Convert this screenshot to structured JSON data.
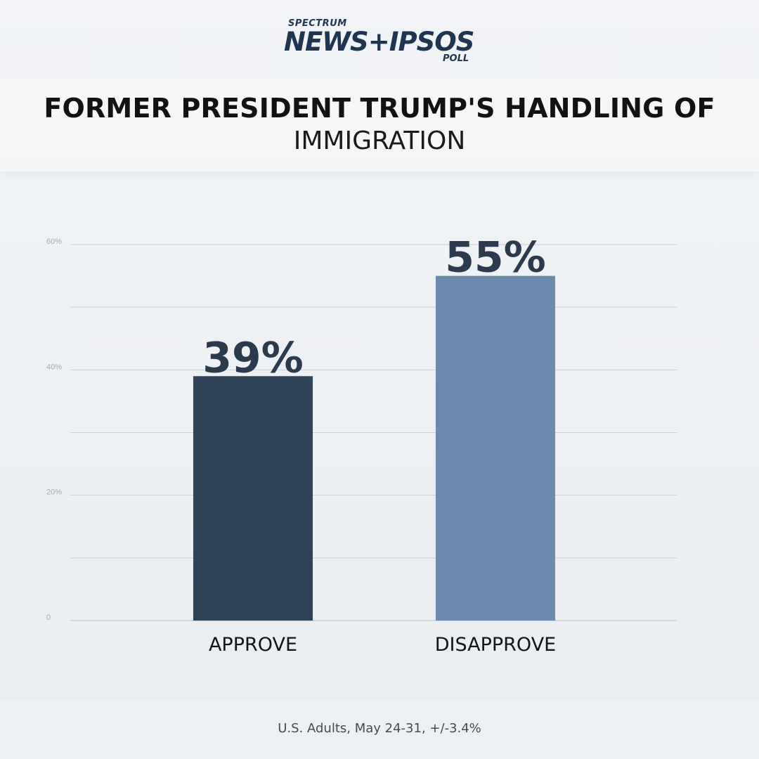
{
  "logo": {
    "line1": "SPECTRUM",
    "line2": "NEWS+IPSOS",
    "line3": "POLL"
  },
  "title": {
    "line1": "FORMER PRESIDENT TRUMP'S HANDLING OF",
    "line2": "IMMIGRATION"
  },
  "footer": {
    "note": "U.S. Adults, May 24-31, +/-3.4%"
  },
  "colors": {
    "approve": "#2f4459",
    "disapprove": "#6b8aae",
    "text": "#2b3a4d"
  },
  "chart_data": {
    "type": "bar",
    "categories": [
      "APPROVE",
      "DISAPPROVE"
    ],
    "values": [
      39,
      55
    ],
    "data_labels": [
      "39%",
      "55%"
    ],
    "ylim": [
      0,
      60
    ],
    "yticks": [
      0,
      20,
      40,
      60
    ],
    "ytick_labels": [
      "0",
      "20%",
      "40%",
      "60%"
    ],
    "grid": true,
    "title": "",
    "xlabel": "",
    "ylabel": ""
  }
}
